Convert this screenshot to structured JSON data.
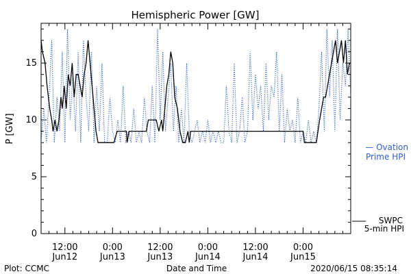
{
  "chart_data": {
    "type": "line",
    "title": "Hemispheric Power [GW]",
    "ylabel": "P [GW]",
    "xlabel": "Date and Time",
    "ylim": [
      0,
      18.5
    ],
    "xlim": [
      "2020-06-12 06:00",
      "2020-06-15 12:00"
    ],
    "y_ticks": [
      0,
      5,
      10,
      15
    ],
    "y_tick_labels": [
      "0",
      "5",
      "10",
      "15"
    ],
    "x_ticks": [
      {
        "x": "2020-06-12 12:00",
        "time": "12:00",
        "day": "Jun12"
      },
      {
        "x": "2020-06-13 00:00",
        "time": "0:00",
        "day": "Jun13"
      },
      {
        "x": "2020-06-13 12:00",
        "time": "12:00",
        "day": "Jun13"
      },
      {
        "x": "2020-06-14 00:00",
        "time": "0:00",
        "day": "Jun14"
      },
      {
        "x": "2020-06-14 12:00",
        "time": "12:00",
        "day": "Jun14"
      },
      {
        "x": "2020-06-15 00:00",
        "time": "0:00",
        "day": "Jun15"
      }
    ],
    "grid": false,
    "legend_position": "right",
    "series": [
      {
        "name": "SWPC 5-min HPI",
        "legend": [
          "SWPC",
          "5-min HPI"
        ],
        "color": "#000000",
        "style": "solid",
        "x": [
          "2020-06-12 06:00",
          "2020-06-12 06:20",
          "2020-06-12 07:00",
          "2020-06-12 07:30",
          "2020-06-12 08:10",
          "2020-06-12 08:40",
          "2020-06-12 09:00",
          "2020-06-12 09:30",
          "2020-06-12 10:00",
          "2020-06-12 10:30",
          "2020-06-12 11:00",
          "2020-06-12 11:20",
          "2020-06-12 11:50",
          "2020-06-12 12:20",
          "2020-06-12 12:50",
          "2020-06-12 13:20",
          "2020-06-12 13:50",
          "2020-06-12 14:20",
          "2020-06-12 14:50",
          "2020-06-12 15:20",
          "2020-06-12 15:50",
          "2020-06-12 16:20",
          "2020-06-12 16:50",
          "2020-06-12 17:20",
          "2020-06-12 17:50",
          "2020-06-12 18:20",
          "2020-06-12 18:50",
          "2020-06-12 19:20",
          "2020-06-12 19:50",
          "2020-06-12 20:20",
          "2020-06-12 20:50",
          "2020-06-12 21:20",
          "2020-06-12 22:00",
          "2020-06-12 22:40",
          "2020-06-12 23:30",
          "2020-06-13 00:20",
          "2020-06-13 01:10",
          "2020-06-13 02:30",
          "2020-06-13 03:30",
          "2020-06-13 03:40",
          "2020-06-13 04:10",
          "2020-06-13 04:20",
          "2020-06-13 05:00",
          "2020-06-13 06:00",
          "2020-06-13 07:00",
          "2020-06-13 08:30",
          "2020-06-13 09:00",
          "2020-06-13 10:00",
          "2020-06-13 11:00",
          "2020-06-13 11:40",
          "2020-06-13 12:20",
          "2020-06-13 12:40",
          "2020-06-13 13:10",
          "2020-06-13 13:40",
          "2020-06-13 14:10",
          "2020-06-13 14:40",
          "2020-06-13 15:10",
          "2020-06-13 15:40",
          "2020-06-13 16:20",
          "2020-06-13 17:00",
          "2020-06-13 17:40",
          "2020-06-13 18:20",
          "2020-06-13 19:00",
          "2020-06-13 19:20",
          "2020-06-13 19:40",
          "2020-06-13 20:00",
          "2020-06-13 20:30",
          "2020-06-13 21:30",
          "2020-06-14 00:00",
          "2020-06-14 06:00",
          "2020-06-14 12:00",
          "2020-06-14 18:00",
          "2020-06-14 22:00",
          "2020-06-15 00:00",
          "2020-06-15 00:20",
          "2020-06-15 02:00",
          "2020-06-15 03:20",
          "2020-06-15 04:10",
          "2020-06-15 04:40",
          "2020-06-15 05:10",
          "2020-06-15 05:40",
          "2020-06-15 06:10",
          "2020-06-15 06:40",
          "2020-06-15 07:10",
          "2020-06-15 07:40",
          "2020-06-15 08:10",
          "2020-06-15 08:40",
          "2020-06-15 09:10",
          "2020-06-15 09:40",
          "2020-06-15 10:10",
          "2020-06-15 10:40",
          "2020-06-15 11:10",
          "2020-06-15 11:40",
          "2020-06-15 12:00"
        ],
        "values": [
          17,
          16,
          15,
          13,
          11,
          10,
          9,
          10,
          9,
          10,
          12,
          11,
          13,
          11,
          14,
          13,
          15,
          12,
          14,
          14,
          13,
          12,
          14,
          15,
          17,
          15,
          13,
          11,
          9,
          8,
          8,
          8,
          8,
          8,
          8,
          8,
          9,
          9,
          9,
          8,
          9,
          9,
          9,
          9,
          9,
          9,
          10,
          10,
          10,
          9,
          10,
          9,
          11,
          13,
          14,
          16,
          15,
          12,
          11,
          9,
          8,
          8,
          9,
          8,
          9,
          9,
          9,
          9,
          9,
          9,
          9,
          9,
          9,
          9,
          8,
          8,
          8,
          10,
          11,
          12,
          12,
          13,
          14,
          15,
          16,
          17,
          15,
          16,
          17,
          15,
          17,
          14,
          15,
          15
        ]
      },
      {
        "name": "Ovation Prime HPI",
        "legend": [
          "— Ovation",
          "Prime HPI"
        ],
        "color": "#3060c0",
        "style": "dotted",
        "x": [
          "2020-06-12 06:00",
          "2020-06-12 06:40",
          "2020-06-12 07:20",
          "2020-06-12 08:00",
          "2020-06-12 08:40",
          "2020-06-12 09:20",
          "2020-06-12 10:00",
          "2020-06-12 10:40",
          "2020-06-12 11:20",
          "2020-06-12 12:00",
          "2020-06-12 12:40",
          "2020-06-12 13:20",
          "2020-06-12 14:00",
          "2020-06-12 14:40",
          "2020-06-12 15:20",
          "2020-06-12 16:00",
          "2020-06-12 16:40",
          "2020-06-12 17:20",
          "2020-06-12 18:00",
          "2020-06-12 18:40",
          "2020-06-12 19:20",
          "2020-06-12 20:00",
          "2020-06-12 20:40",
          "2020-06-12 21:20",
          "2020-06-12 22:00",
          "2020-06-12 22:40",
          "2020-06-12 23:20",
          "2020-06-13 00:00",
          "2020-06-13 00:40",
          "2020-06-13 01:20",
          "2020-06-13 02:00",
          "2020-06-13 02:40",
          "2020-06-13 03:20",
          "2020-06-13 04:00",
          "2020-06-13 04:40",
          "2020-06-13 05:20",
          "2020-06-13 06:00",
          "2020-06-13 06:40",
          "2020-06-13 07:20",
          "2020-06-13 08:00",
          "2020-06-13 08:40",
          "2020-06-13 09:20",
          "2020-06-13 10:00",
          "2020-06-13 10:40",
          "2020-06-13 11:20",
          "2020-06-13 12:00",
          "2020-06-13 12:40",
          "2020-06-13 13:20",
          "2020-06-13 14:00",
          "2020-06-13 14:40",
          "2020-06-13 15:20",
          "2020-06-13 16:00",
          "2020-06-13 16:40",
          "2020-06-13 17:20",
          "2020-06-13 18:00",
          "2020-06-13 18:40",
          "2020-06-13 19:20",
          "2020-06-13 20:00",
          "2020-06-13 20:40",
          "2020-06-13 21:20",
          "2020-06-13 22:00",
          "2020-06-13 22:40",
          "2020-06-13 23:20",
          "2020-06-14 00:00",
          "2020-06-14 00:40",
          "2020-06-14 01:20",
          "2020-06-14 02:00",
          "2020-06-14 02:40",
          "2020-06-14 03:20",
          "2020-06-14 04:00",
          "2020-06-14 04:40",
          "2020-06-14 05:20",
          "2020-06-14 06:00",
          "2020-06-14 06:40",
          "2020-06-14 07:20",
          "2020-06-14 08:00",
          "2020-06-14 08:40",
          "2020-06-14 09:20",
          "2020-06-14 10:00",
          "2020-06-14 10:40",
          "2020-06-14 11:20",
          "2020-06-14 12:00",
          "2020-06-14 12:40",
          "2020-06-14 13:20",
          "2020-06-14 14:00",
          "2020-06-14 14:40",
          "2020-06-14 15:20",
          "2020-06-14 16:00",
          "2020-06-14 16:40",
          "2020-06-14 17:20",
          "2020-06-14 18:00",
          "2020-06-14 18:40",
          "2020-06-14 19:20",
          "2020-06-14 20:00",
          "2020-06-14 20:40",
          "2020-06-14 21:20",
          "2020-06-14 22:00",
          "2020-06-14 22:40",
          "2020-06-14 23:20",
          "2020-06-15 00:00",
          "2020-06-15 00:40",
          "2020-06-15 01:20",
          "2020-06-15 02:00",
          "2020-06-15 02:40",
          "2020-06-15 03:20",
          "2020-06-15 04:00",
          "2020-06-15 04:40",
          "2020-06-15 05:20",
          "2020-06-15 06:00",
          "2020-06-15 06:40",
          "2020-06-15 07:20",
          "2020-06-15 08:00",
          "2020-06-15 08:40",
          "2020-06-15 09:20",
          "2020-06-15 10:00",
          "2020-06-15 10:40",
          "2020-06-15 11:20",
          "2020-06-15 12:00"
        ],
        "values": [
          8,
          11,
          8,
          12,
          17,
          8,
          12,
          9,
          16,
          8,
          18,
          10,
          14,
          9,
          16,
          8,
          17,
          12,
          9,
          16,
          8,
          13,
          9,
          15,
          8,
          8,
          12,
          9,
          8,
          10,
          8,
          13,
          8,
          9,
          8,
          11,
          8,
          9,
          8,
          12,
          9,
          8,
          13,
          8,
          18,
          10,
          16,
          9,
          12,
          15,
          9,
          13,
          8,
          11,
          8,
          15,
          9,
          8,
          9,
          10,
          8,
          9,
          8,
          10,
          8,
          9,
          8,
          9,
          8,
          8,
          13,
          9,
          8,
          15,
          8,
          9,
          12,
          8,
          9,
          16,
          10,
          14,
          11,
          13,
          9,
          15,
          10,
          13,
          12,
          16,
          9,
          14,
          8,
          11,
          9,
          10,
          8,
          12,
          8,
          9,
          8,
          10,
          8,
          9,
          8,
          11,
          16,
          9,
          18,
          12,
          17,
          9,
          18,
          10,
          15,
          13,
          18,
          12
        ]
      }
    ]
  },
  "footer": {
    "left": "Plot: CCMC",
    "center": "Date and Time",
    "right": "2020/06/15 08:35:14"
  }
}
